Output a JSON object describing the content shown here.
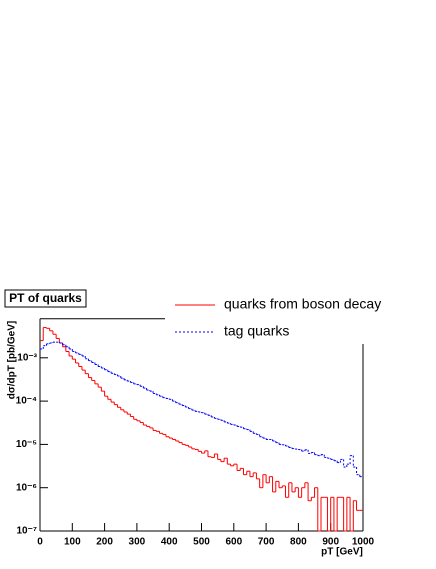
{
  "chart_data": {
    "type": "histogram",
    "title": "PT of quarks",
    "x_label": "pT [GeV]",
    "y_label": "dσ/dpT [pb/GeV]",
    "log_y": true,
    "legend": "top-right",
    "xlim": [
      0,
      1000
    ],
    "ylim": [
      1e-07,
      0.008
    ],
    "xticks": [
      0,
      100,
      200,
      300,
      400,
      500,
      600,
      700,
      800,
      900,
      1000
    ],
    "yticks": [
      {
        "value": 1e-07,
        "label": "10⁻⁷"
      },
      {
        "value": 1e-06,
        "label": "10⁻⁶"
      },
      {
        "value": 1e-05,
        "label": "10⁻⁵"
      },
      {
        "value": 0.0001,
        "label": "10⁻⁴"
      },
      {
        "value": 0.001,
        "label": "10⁻³"
      }
    ],
    "bins": [
      0,
      10,
      20,
      30,
      40,
      50,
      60,
      70,
      80,
      90,
      100,
      110,
      120,
      130,
      140,
      150,
      160,
      170,
      180,
      190,
      200,
      210,
      220,
      230,
      240,
      250,
      260,
      270,
      280,
      290,
      300,
      310,
      320,
      330,
      340,
      350,
      360,
      370,
      380,
      390,
      400,
      410,
      420,
      430,
      440,
      450,
      460,
      470,
      480,
      490,
      500,
      510,
      520,
      530,
      540,
      550,
      560,
      570,
      580,
      590,
      600,
      610,
      620,
      630,
      640,
      650,
      660,
      670,
      680,
      690,
      700,
      710,
      720,
      730,
      740,
      750,
      760,
      770,
      780,
      790,
      800,
      810,
      820,
      830,
      840,
      850,
      860,
      870,
      880,
      890,
      900,
      910,
      920,
      930,
      940,
      950,
      960,
      970,
      980,
      990,
      1000
    ],
    "series": [
      {
        "name": "quarks from boson decay",
        "color": "#ff0000",
        "style": "solid",
        "values": [
          0.0025,
          0.005,
          0.0048,
          0.0042,
          0.0035,
          0.0028,
          0.0022,
          0.0018,
          0.0014,
          0.0011,
          0.00093,
          0.00076,
          0.00063,
          0.00052,
          0.00043,
          0.00035,
          0.0003,
          0.00025,
          0.00021,
          0.00017,
          0.00013,
          0.00011,
          9.5e-05,
          8.3e-05,
          7.2e-05,
          6.3e-05,
          5.6e-05,
          5e-05,
          4.4e-05,
          3.8e-05,
          3.5e-05,
          3.2e-05,
          2.8e-05,
          2.6e-05,
          2.4e-05,
          2.1e-05,
          2e-05,
          1.8e-05,
          1.7e-05,
          1.5e-05,
          1.4e-05,
          1.3e-05,
          1.2e-05,
          1.1e-05,
          1e-05,
          9.5e-06,
          8.7e-06,
          7.9e-06,
          7.6e-06,
          6.9e-06,
          6.3e-06,
          7.1e-06,
          5.2e-06,
          5e-06,
          6e-06,
          4.5e-06,
          4e-06,
          4.8e-06,
          3.5e-06,
          3.2e-06,
          3.5e-06,
          2.5e-06,
          2.8e-06,
          2e-06,
          2.4e-06,
          1.8e-06,
          2.2e-06,
          1.6e-06,
          1e-06,
          2e-06,
          1.3e-06,
          1.8e-06,
          8e-07,
          1.4e-06,
          1e-06,
          1.1e-06,
          6e-07,
          1.3e-06,
          8e-07,
          1e-06,
          6e-07,
          1e-06,
          1.3e-06,
          5e-07,
          6e-07,
          1e-06,
          0,
          6e-07,
          6e-07,
          0,
          6e-07,
          0,
          6e-07,
          6e-07,
          0,
          6e-07,
          0,
          5e-07,
          3e-07,
          3e-07
        ]
      },
      {
        "name": "tag quarks",
        "color": "#0000ff",
        "style": "dashed",
        "values": [
          0.0016,
          0.0019,
          0.0021,
          0.0022,
          0.0023,
          0.0023,
          0.0022,
          0.002,
          0.0018,
          0.0016,
          0.0014,
          0.0013,
          0.0012,
          0.0011,
          0.00095,
          0.00086,
          0.00078,
          0.0007,
          0.00063,
          0.00058,
          0.00053,
          0.00048,
          0.00044,
          0.00041,
          0.00038,
          0.00034,
          0.00031,
          0.00029,
          0.00027,
          0.00025,
          0.00024,
          0.00022,
          0.0002,
          0.00018,
          0.00017,
          0.00015,
          0.00014,
          0.00013,
          0.00012,
          0.000115,
          0.00011,
          0.0001,
          9.2e-05,
          8.5e-05,
          7.9e-05,
          7.3e-05,
          6.7e-05,
          6.2e-05,
          5.8e-05,
          5.6e-05,
          5.4e-05,
          5e-05,
          4.7e-05,
          4.3e-05,
          4e-05,
          3.8e-05,
          3.6e-05,
          3.3e-05,
          3.1e-05,
          2.9e-05,
          2.8e-05,
          2.6e-05,
          2.5e-05,
          2.3e-05,
          2.2e-05,
          2e-05,
          1.8e-05,
          1.7e-05,
          1.5e-05,
          1.4e-05,
          1.3e-05,
          1.3e-05,
          1.2e-05,
          1.1e-05,
          1e-05,
          9.8e-06,
          9.2e-06,
          8.5e-06,
          8e-06,
          7.8e-06,
          7.6e-06,
          7e-06,
          7.5e-06,
          6.2e-06,
          6.5e-06,
          5.8e-06,
          5.5e-06,
          5.8e-06,
          5e-06,
          4.8e-06,
          4.5e-06,
          4.2e-06,
          3.8e-06,
          4.5e-06,
          3e-06,
          3.5e-06,
          5.5e-06,
          3e-06,
          2e-06,
          1.8e-06
        ]
      }
    ]
  }
}
